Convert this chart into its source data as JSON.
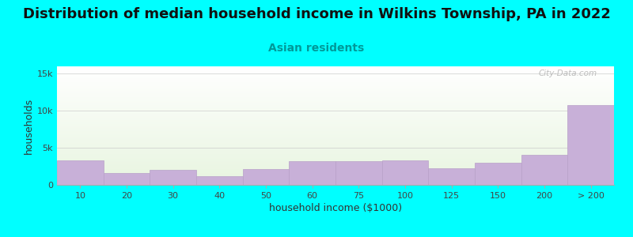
{
  "title": "Distribution of median household income in Wilkins Township, PA in 2022",
  "subtitle": "Asian residents",
  "xlabel": "household income ($1000)",
  "ylabel": "households",
  "background_color": "#00FFFF",
  "plot_bg_top": "#e8f5e0",
  "plot_bg_bottom": "#ffffff",
  "bar_color": "#c8b0d8",
  "bar_edge_color": "#b8a0c8",
  "categories": [
    "10",
    "20",
    "30",
    "40",
    "50",
    "60",
    "75",
    "100",
    "125",
    "150",
    "200",
    "> 200"
  ],
  "values": [
    3300,
    1600,
    2000,
    1200,
    2100,
    3200,
    3200,
    3300,
    2200,
    3000,
    4100,
    10800
  ],
  "bar_lefts": [
    0,
    1,
    2,
    3,
    4,
    5,
    6,
    7,
    8,
    9,
    10,
    11
  ],
  "bar_widths": [
    1,
    1,
    1,
    1,
    1,
    1,
    1,
    1,
    1,
    1,
    1,
    1
  ],
  "tick_positions": [
    0,
    1,
    2,
    3,
    4,
    5,
    6,
    7,
    8,
    9,
    10,
    11
  ],
  "ylim": [
    0,
    16000
  ],
  "yticks": [
    0,
    5000,
    10000,
    15000
  ],
  "ytick_labels": [
    "0",
    "5k",
    "10k",
    "15k"
  ],
  "title_fontsize": 13,
  "subtitle_fontsize": 10,
  "axis_label_fontsize": 9,
  "tick_fontsize": 8,
  "watermark": "City-Data.com"
}
